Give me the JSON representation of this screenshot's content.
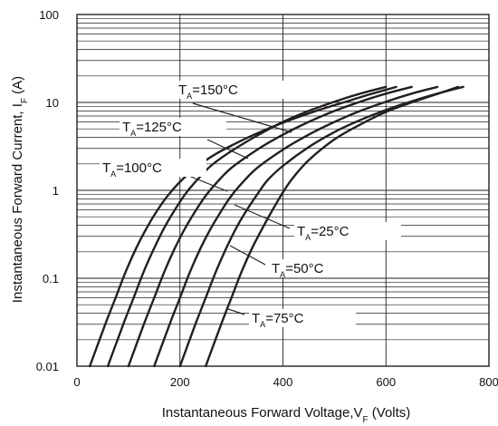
{
  "chart_data": {
    "type": "line",
    "xlabel": {
      "text": "Instantaneous Forward Voltage,V",
      "sub": "F",
      "unit": " (Volts)"
    },
    "ylabel": {
      "text": "Instantaneous Forward Current, I",
      "sub": "F",
      "unit": " (A)"
    },
    "xlim": [
      0,
      800
    ],
    "ylim": [
      0.01,
      100
    ],
    "y_scale": "log",
    "grid": true,
    "x_ticks": [
      "0",
      "200",
      "400",
      "600",
      "800"
    ],
    "y_ticks": [
      "0.01",
      "0.1",
      "1",
      "10",
      "100"
    ],
    "line_color": "#231f20",
    "series": [
      {
        "name_prefix": "T",
        "name_sub": "A",
        "name_suffix": "=25°C",
        "x": [
          250,
          280,
          300,
          320,
          340,
          360,
          380,
          400,
          420,
          450,
          500,
          550,
          600,
          650,
          700,
          740
        ],
        "y": [
          0.01,
          0.03,
          0.06,
          0.12,
          0.22,
          0.37,
          0.6,
          0.95,
          1.4,
          2.2,
          3.8,
          5.6,
          7.8,
          10,
          12.5,
          15
        ]
      },
      {
        "name_prefix": "T",
        "name_sub": "A",
        "name_suffix": "=50°C",
        "x": [
          200,
          230,
          250,
          270,
          290,
          310,
          330,
          350,
          370,
          400,
          450,
          500,
          550,
          600,
          650,
          700,
          750
        ],
        "y": [
          0.01,
          0.03,
          0.06,
          0.12,
          0.22,
          0.38,
          0.6,
          0.9,
          1.3,
          1.9,
          3.1,
          4.6,
          6.3,
          8.2,
          10.3,
          12.6,
          15
        ]
      },
      {
        "name_prefix": "T",
        "name_sub": "A",
        "name_suffix": "=75°C",
        "x": [
          150,
          180,
          200,
          220,
          240,
          260,
          280,
          300,
          320,
          350,
          400,
          450,
          500,
          550,
          600,
          650,
          700
        ],
        "y": [
          0.01,
          0.03,
          0.06,
          0.12,
          0.22,
          0.37,
          0.58,
          0.87,
          1.2,
          1.8,
          2.9,
          4.3,
          6.0,
          8.0,
          10.2,
          12.6,
          15
        ]
      },
      {
        "name_prefix": "T",
        "name_sub": "A",
        "name_suffix": "=100°C",
        "x": [
          100,
          130,
          150,
          170,
          190,
          210,
          230,
          250,
          270,
          300,
          350,
          400,
          450,
          500,
          550,
          600,
          650
        ],
        "y": [
          0.01,
          0.03,
          0.06,
          0.12,
          0.22,
          0.37,
          0.58,
          0.87,
          1.2,
          1.8,
          2.9,
          4.3,
          6.0,
          8.0,
          10.2,
          12.6,
          15
        ]
      },
      {
        "name_prefix": "T",
        "name_sub": "A",
        "name_suffix": "=125°C",
        "x": [
          60,
          90,
          110,
          130,
          150,
          170,
          190,
          210,
          230,
          260,
          300,
          350,
          400,
          450,
          500,
          550,
          600
        ],
        "y": [
          0.01,
          0.03,
          0.06,
          0.12,
          0.22,
          0.38,
          0.6,
          0.9,
          1.25,
          1.9,
          2.8,
          4.2,
          6.0,
          8.0,
          10.2,
          12.6,
          15
        ]
      },
      {
        "name_prefix": "T",
        "name_sub": "A",
        "name_suffix": "=150°C",
        "x": [
          25,
          55,
          75,
          95,
          115,
          135,
          155,
          175,
          200,
          230,
          270,
          320,
          370,
          420,
          470,
          520,
          570,
          620
        ],
        "y": [
          0.01,
          0.03,
          0.06,
          0.12,
          0.22,
          0.37,
          0.58,
          0.85,
          1.25,
          1.8,
          2.6,
          3.7,
          5.0,
          6.5,
          8.2,
          10.1,
          12.4,
          15
        ]
      }
    ]
  }
}
